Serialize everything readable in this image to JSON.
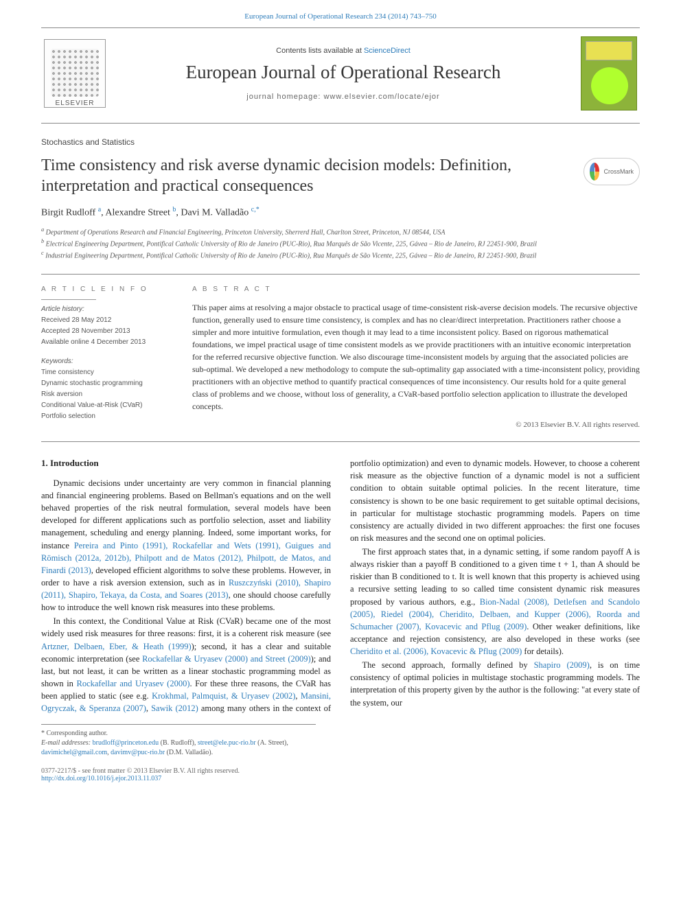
{
  "colors": {
    "link": "#2b7bb9",
    "text": "#1a1a1a",
    "muted": "#555555",
    "rule": "#888888",
    "cover_bg": "#8db33a",
    "cover_accent1": "#e8e052",
    "cover_accent2": "#b0ff2e"
  },
  "header": {
    "top_link": "European Journal of Operational Research 234 (2014) 743–750",
    "contents_prefix": "Contents lists available at ",
    "contents_link": "ScienceDirect",
    "journal_name": "European Journal of Operational Research",
    "homepage": "journal homepage: www.elsevier.com/locate/ejor",
    "elsevier": "ELSEVIER",
    "crossmark": "CrossMark"
  },
  "article": {
    "section_tag": "Stochastics and Statistics",
    "title": "Time consistency and risk averse dynamic decision models: Definition, interpretation and practical consequences",
    "authors_html": "Birgit Rudloff <sup>a</sup>, Alexandre Street <sup>b</sup>, Davi M. Valladão <sup>c,*</sup>",
    "affiliations": [
      "a Department of Operations Research and Financial Engineering, Princeton University, Sherrerd Hall, Charlton Street, Princeton, NJ 08544, USA",
      "b Electrical Engineering Department, Pontifical Catholic University of Rio de Janeiro (PUC-Rio), Rua Marquês de São Vicente, 225, Gávea – Rio de Janeiro, RJ 22451-900, Brazil",
      "c Industrial Engineering Department, Pontifical Catholic University of Rio de Janeiro (PUC-Rio), Rua Marquês de São Vicente, 225, Gávea – Rio de Janeiro, RJ 22451-900, Brazil"
    ]
  },
  "info": {
    "heading": "A R T I C L E   I N F O",
    "history_label": "Article history:",
    "history": [
      "Received 28 May 2012",
      "Accepted 28 November 2013",
      "Available online 4 December 2013"
    ],
    "keywords_label": "Keywords:",
    "keywords": [
      "Time consistency",
      "Dynamic stochastic programming",
      "Risk aversion",
      "Conditional Value-at-Risk (CVaR)",
      "Portfolio selection"
    ]
  },
  "abstract": {
    "heading": "A B S T R A C T",
    "text": "This paper aims at resolving a major obstacle to practical usage of time-consistent risk-averse decision models. The recursive objective function, generally used to ensure time consistency, is complex and has no clear/direct interpretation. Practitioners rather choose a simpler and more intuitive formulation, even though it may lead to a time inconsistent policy. Based on rigorous mathematical foundations, we impel practical usage of time consistent models as we provide practitioners with an intuitive economic interpretation for the referred recursive objective function. We also discourage time-inconsistent models by arguing that the associated policies are sub-optimal. We developed a new methodology to compute the sub-optimality gap associated with a time-inconsistent policy, providing practitioners with an objective method to quantify practical consequences of time inconsistency. Our results hold for a quite general class of problems and we choose, without loss of generality, a CVaR-based portfolio selection application to illustrate the developed concepts.",
    "copyright": "© 2013 Elsevier B.V. All rights reserved."
  },
  "body": {
    "intro_heading": "1. Introduction",
    "p1a": "Dynamic decisions under uncertainty are very common in financial planning and financial engineering problems. Based on Bellman's equations and on the well behaved properties of the risk neutral formulation, several models have been developed for different applications such as portfolio selection, asset and liability management, scheduling and energy planning. Indeed, some important works, for instance ",
    "p1_link1": "Pereira and Pinto (1991), Rockafellar and Wets (1991), Guigues and Römisch (2012a, 2012b), Philpott and de Matos (2012), Philpott, de Matos, and Finardi (2013)",
    "p1b": ", developed efficient algorithms to solve these problems. However, in order to have a risk aversion extension, such as in ",
    "p1_link2": "Ruszczyński (2010), Shapiro (2011), Shapiro, Tekaya, da Costa, and Soares (2013)",
    "p1c": ", one should choose carefully how to introduce the well known risk measures into these problems.",
    "p2a": "In this context, the Conditional Value at Risk (CVaR) became one of the most widely used risk measures for three reasons: first, it is a coherent risk measure (see ",
    "p2_link1": "Artzner, Delbaen, Eber, & Heath (1999)",
    "p2b": "); second, it has a clear and suitable economic interpretation (see ",
    "p2_link2": "Rockafellar & Uryasev (2000) and Street (2009)",
    "p2c": "); and last, but not least, it can be written as a linear stochastic programming model as shown in ",
    "p2_link3": "Rockafellar and Uryasev (2000)",
    "p2d": ". For these three reasons, the CVaR has been applied to static (see e.g. ",
    "p2_link4": "Krokhmal, Palmquist, & Uryasev (2002)",
    "p2e": ", ",
    "p2_link5": "Mansini, Ogryczak, & Speranza (2007)",
    "p2f": ", ",
    "p2_link6": "Sawik (2012)",
    "p2g": " among many others in the context of portfolio optimization) and even to dynamic models. However, to choose a coherent risk measure as the objective function of a dynamic model is not a sufficient condition to obtain suitable optimal policies. In the recent literature, time consistency is shown to be one basic requirement to get suitable optimal decisions, in particular for multistage stochastic programming models. Papers on time consistency are actually divided in two different approaches: the first one focuses on risk measures and the second one on optimal policies.",
    "p3a": "The first approach states that, in a dynamic setting, if some random payoff A is always riskier than a payoff B conditioned to a given time t + 1, than A should be riskier than B conditioned to t. It is well known that this property is achieved using a recursive setting leading to so called time consistent dynamic risk measures proposed by various authors, e.g., ",
    "p3_link1": "Bion-Nadal (2008), Detlefsen and Scandolo (2005), Riedel (2004), Cheridito, Delbaen, and Kupper (2006), Roorda and Schumacher (2007), Kovacevic and Pflug (2009)",
    "p3b": ". Other weaker definitions, like acceptance and rejection consistency, are also developed in these works (see ",
    "p3_link2": "Cheridito et al. (2006), Kovacevic & Pflug (2009)",
    "p3c": " for details).",
    "p4a": "The second approach, formally defined by ",
    "p4_link1": "Shapiro (2009)",
    "p4b": ", is on time consistency of optimal policies in multistage stochastic programming models. The interpretation of this property given by the author is the following: \"at every state of the system, our"
  },
  "footnotes": {
    "corr": "* Corresponding author.",
    "emails_label": "E-mail addresses: ",
    "e1": "brudloff@princeton.edu",
    "e1_who": " (B. Rudloff), ",
    "e2": "street@ele.puc-rio.br",
    "e2_who": " (A. Street), ",
    "e3": "davimichel@gmail.com",
    "e3_sep": ", ",
    "e4": "davimv@puc-rio.br",
    "e4_who": " (D.M. Valladão)."
  },
  "footer": {
    "line1": "0377-2217/$ - see front matter © 2013 Elsevier B.V. All rights reserved.",
    "doi": "http://dx.doi.org/10.1016/j.ejor.2013.11.037"
  }
}
